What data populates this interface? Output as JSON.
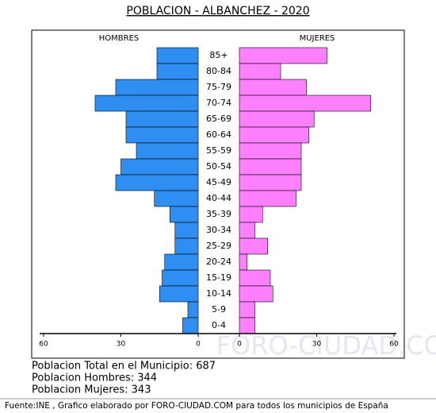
{
  "chart_data": {
    "type": "pyramid",
    "title": "POBLACION - ALBANCHEZ - 2020",
    "categories": [
      "85+",
      "80-84",
      "75-79",
      "70-74",
      "65-69",
      "60-64",
      "55-59",
      "50-54",
      "45-49",
      "40-44",
      "35-39",
      "30-34",
      "25-29",
      "20-24",
      "15-19",
      "10-14",
      "5-9",
      "0-4"
    ],
    "series": [
      {
        "name": "HOMBRES",
        "color": "#2e8ef2",
        "values": [
          16,
          16,
          32,
          40,
          28,
          28,
          24,
          30,
          32,
          17,
          11,
          9,
          9,
          13,
          14,
          15,
          4,
          6
        ]
      },
      {
        "name": "MUJERES",
        "color": "#ff80ff",
        "values": [
          34,
          16,
          26,
          51,
          29,
          27,
          24,
          24,
          24,
          22,
          9,
          6,
          11,
          3,
          12,
          13,
          6,
          6
        ]
      }
    ],
    "xlim": [
      0,
      60
    ],
    "xticks": [
      0,
      30,
      60
    ],
    "watermark": "FORO-CIUDAD.COM",
    "stats": [
      "Poblacion Total en el Municipio: 687",
      "Poblacion Hombres: 344",
      "Poblacion Mujeres: 343"
    ],
    "source": "Fuente:INE , Grafico elaborado por FORO-CIUDAD.COM para todos los municipios de España"
  }
}
